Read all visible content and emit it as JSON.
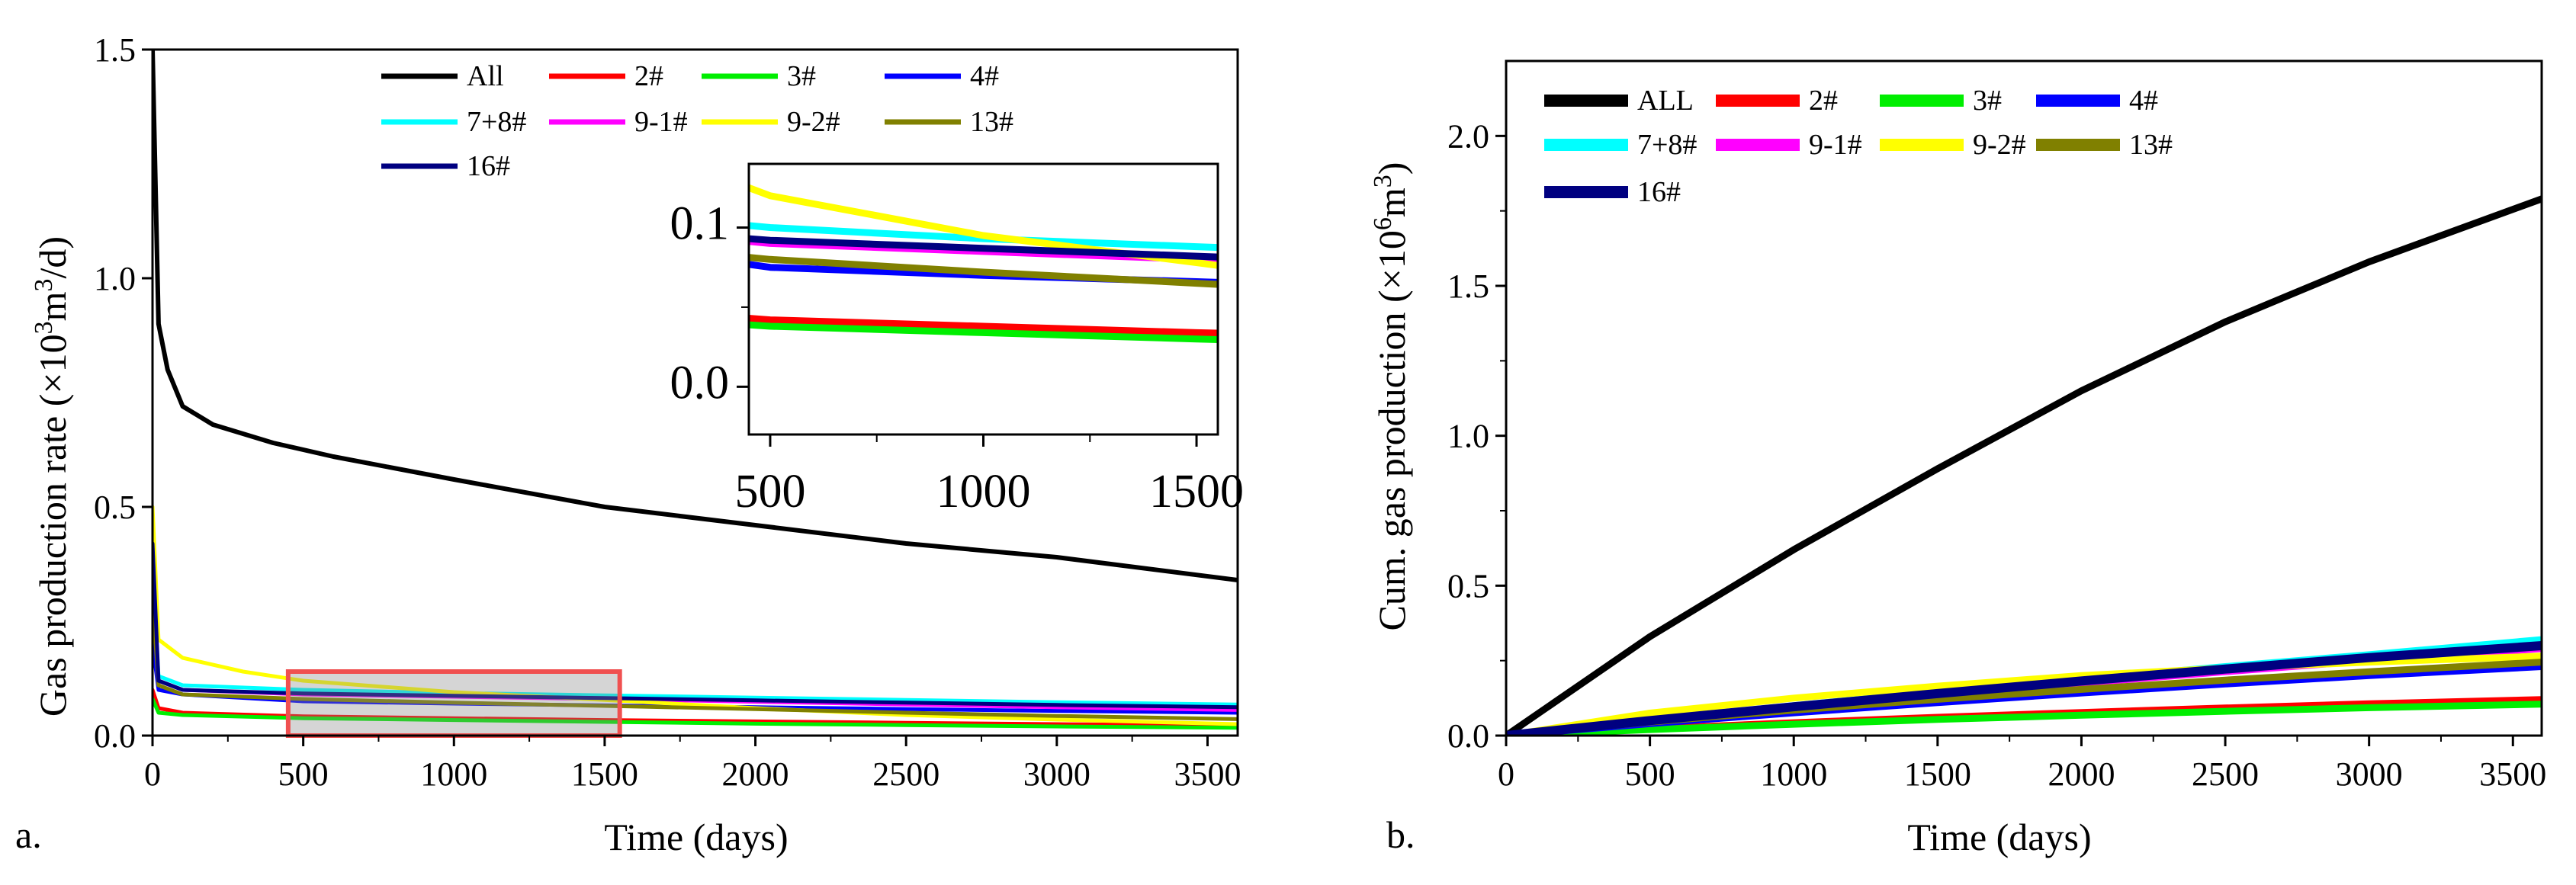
{
  "chart_data": [
    {
      "type": "line",
      "panel_label": "a.",
      "title": "",
      "xlabel": "Time (days)",
      "ylabel_main": "Gas production rate (×10",
      "ylabel_sup": "3",
      "ylabel_mid": "m",
      "ylabel_sup2": "3",
      "ylabel_end": "/d)",
      "xlim": [
        0,
        3600
      ],
      "ylim": [
        0,
        1.5
      ],
      "xticks": [
        0,
        500,
        1000,
        1500,
        2000,
        2500,
        3000,
        3500
      ],
      "xtick_labels": [
        "0",
        "500",
        "1000",
        "1500",
        "2000",
        "2500",
        "3000",
        "3500"
      ],
      "yticks": [
        0,
        0.5,
        1.0,
        1.5
      ],
      "ytick_labels": [
        "0.0",
        "0.5",
        "1.0",
        "1.5"
      ],
      "legend": {
        "position": "top"
      },
      "series": [
        {
          "name": "All",
          "color": "#000000",
          "x": [
            0,
            20,
            50,
            100,
            200,
            400,
            600,
            1000,
            1500,
            2000,
            2500,
            3000,
            3600
          ],
          "values": [
            1.5,
            0.9,
            0.8,
            0.72,
            0.68,
            0.64,
            0.61,
            0.56,
            0.5,
            0.46,
            0.42,
            0.39,
            0.34
          ]
        },
        {
          "name": "2#",
          "color": "#ff0000",
          "x": [
            0,
            20,
            100,
            500,
            1000,
            1500,
            2000,
            2500,
            3000,
            3600
          ],
          "values": [
            0.1,
            0.06,
            0.05,
            0.042,
            0.038,
            0.034,
            0.031,
            0.028,
            0.025,
            0.022
          ]
        },
        {
          "name": "3#",
          "color": "#00ee00",
          "x": [
            0,
            20,
            100,
            500,
            1000,
            1500,
            2000,
            2500,
            3000,
            3600
          ],
          "values": [
            0.08,
            0.05,
            0.045,
            0.038,
            0.034,
            0.03,
            0.026,
            0.023,
            0.02,
            0.017
          ]
        },
        {
          "name": "4#",
          "color": "#0000ff",
          "x": [
            0,
            20,
            100,
            500,
            1000,
            1500,
            2000,
            2500,
            3000,
            3600
          ],
          "values": [
            0.2,
            0.1,
            0.09,
            0.075,
            0.07,
            0.066,
            0.062,
            0.058,
            0.054,
            0.05
          ]
        },
        {
          "name": "7+8#",
          "color": "#00ffff",
          "x": [
            0,
            20,
            100,
            500,
            1000,
            1500,
            2000,
            2500,
            3000,
            3600
          ],
          "values": [
            0.35,
            0.13,
            0.11,
            0.1,
            0.093,
            0.088,
            0.083,
            0.078,
            0.073,
            0.068
          ]
        },
        {
          "name": "9-1#",
          "color": "#ff00ff",
          "x": [
            0,
            20,
            100,
            500,
            1000,
            1500,
            2000,
            2500,
            3000,
            3600
          ],
          "values": [
            0.3,
            0.12,
            0.1,
            0.09,
            0.085,
            0.08,
            0.074,
            0.068,
            0.062,
            0.056
          ]
        },
        {
          "name": "9-2#",
          "color": "#ffff00",
          "x": [
            0,
            20,
            100,
            300,
            500,
            1000,
            1500,
            2000,
            2500,
            3000,
            3600
          ],
          "values": [
            0.5,
            0.21,
            0.17,
            0.14,
            0.12,
            0.095,
            0.078,
            0.06,
            0.045,
            0.035,
            0.025
          ]
        },
        {
          "name": "13#",
          "color": "#808000",
          "x": [
            0,
            20,
            100,
            500,
            1000,
            1500,
            2000,
            2500,
            3000,
            3600
          ],
          "values": [
            0.3,
            0.11,
            0.09,
            0.08,
            0.072,
            0.065,
            0.058,
            0.05,
            0.043,
            0.036
          ]
        },
        {
          "name": "16#",
          "color": "#000080",
          "x": [
            0,
            20,
            100,
            500,
            1000,
            1500,
            2000,
            2500,
            3000,
            3600
          ],
          "values": [
            0.42,
            0.12,
            0.1,
            0.092,
            0.087,
            0.082,
            0.077,
            0.072,
            0.067,
            0.062
          ]
        }
      ],
      "inset": {
        "xlim": [
          450,
          1550
        ],
        "ylim": [
          -0.03,
          0.14
        ],
        "xticks": [
          500,
          1000,
          1500
        ],
        "xtick_labels": [
          "500",
          "1000",
          "1500"
        ],
        "yticks": [
          0.0,
          0.1
        ],
        "ytick_labels": [
          "0.0",
          "0.1"
        ]
      },
      "highlight_range": {
        "x": [
          450,
          1550
        ],
        "y": [
          0,
          0.14
        ]
      }
    },
    {
      "type": "line",
      "panel_label": "b.",
      "title": "",
      "xlabel": "Time (days)",
      "ylabel_main": "Cum. gas production (×10",
      "ylabel_sup": "6",
      "ylabel_mid": "m",
      "ylabel_sup2": "3",
      "ylabel_end": ")",
      "xlim": [
        0,
        3600
      ],
      "ylim": [
        0,
        2.25
      ],
      "xticks": [
        0,
        500,
        1000,
        1500,
        2000,
        2500,
        3000,
        3500
      ],
      "xtick_labels": [
        "0",
        "500",
        "1000",
        "1500",
        "2000",
        "2500",
        "3000",
        "3500"
      ],
      "yticks": [
        0,
        0.5,
        1.0,
        1.5,
        2.0
      ],
      "ytick_labels": [
        "0.0",
        "0.5",
        "1.0",
        "1.5",
        "2.0"
      ],
      "legend": {
        "position": "top-left"
      },
      "series": [
        {
          "name": "ALL",
          "color": "#000000",
          "x": [
            0,
            500,
            1000,
            1500,
            2000,
            2500,
            3000,
            3600
          ],
          "values": [
            0,
            0.33,
            0.62,
            0.89,
            1.15,
            1.38,
            1.58,
            1.79
          ]
        },
        {
          "name": "2#",
          "color": "#ff0000",
          "x": [
            0,
            500,
            1000,
            1500,
            2000,
            2500,
            3000,
            3600
          ],
          "values": [
            0,
            0.023,
            0.043,
            0.061,
            0.077,
            0.092,
            0.106,
            0.12
          ]
        },
        {
          "name": "3#",
          "color": "#00ee00",
          "x": [
            0,
            500,
            1000,
            1500,
            2000,
            2500,
            3000,
            3600
          ],
          "values": [
            0,
            0.02,
            0.038,
            0.054,
            0.068,
            0.081,
            0.093,
            0.105
          ]
        },
        {
          "name": "4#",
          "color": "#0000ff",
          "x": [
            0,
            500,
            1000,
            1500,
            2000,
            2500,
            3000,
            3600
          ],
          "values": [
            0,
            0.04,
            0.076,
            0.11,
            0.142,
            0.172,
            0.2,
            0.23
          ]
        },
        {
          "name": "7+8#",
          "color": "#00ffff",
          "x": [
            0,
            500,
            1000,
            1500,
            2000,
            2500,
            3000,
            3600
          ],
          "values": [
            0,
            0.052,
            0.1,
            0.145,
            0.188,
            0.23,
            0.27,
            0.32
          ]
        },
        {
          "name": "9-1#",
          "color": "#ff00ff",
          "x": [
            0,
            500,
            1000,
            1500,
            2000,
            2500,
            3000,
            3600
          ],
          "values": [
            0,
            0.048,
            0.093,
            0.135,
            0.175,
            0.213,
            0.25,
            0.29
          ]
        },
        {
          "name": "9-2#",
          "color": "#ffff00",
          "x": [
            0,
            500,
            1000,
            1500,
            2000,
            2500,
            3000,
            3600
          ],
          "values": [
            0,
            0.075,
            0.125,
            0.165,
            0.2,
            0.225,
            0.245,
            0.265
          ]
        },
        {
          "name": "13#",
          "color": "#808000",
          "x": [
            0,
            500,
            1000,
            1500,
            2000,
            2500,
            3000,
            3600
          ],
          "values": [
            0,
            0.045,
            0.085,
            0.121,
            0.154,
            0.185,
            0.213,
            0.245
          ]
        },
        {
          "name": "16#",
          "color": "#000080",
          "x": [
            0,
            500,
            1000,
            1500,
            2000,
            2500,
            3000,
            3600
          ],
          "values": [
            0,
            0.05,
            0.096,
            0.14,
            0.182,
            0.222,
            0.26,
            0.3
          ]
        }
      ]
    }
  ]
}
